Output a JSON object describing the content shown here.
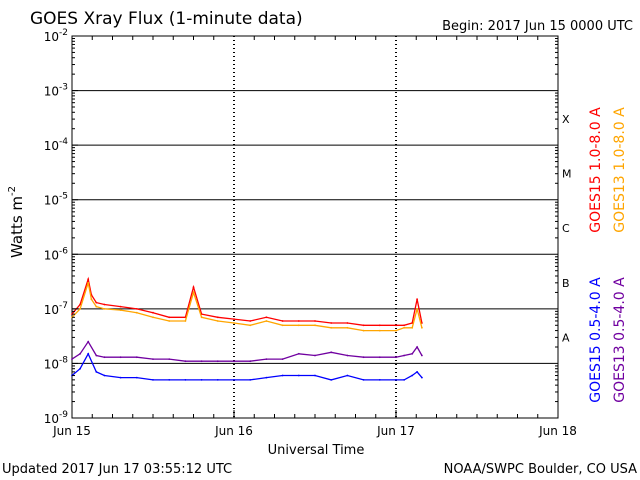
{
  "chart_data": {
    "type": "line",
    "title": "GOES Xray Flux (1-minute data)",
    "begin_label": "Begin:  2017 Jun 15 0000 UTC",
    "xlabel": "Universal Time",
    "ylabel": "Watts m",
    "ylabel_exp": "-2",
    "y_scale": "log",
    "ylim": [
      1e-09,
      0.01
    ],
    "y_ticks": [
      {
        "base": "10",
        "exp": "-2",
        "value": 0.01
      },
      {
        "base": "10",
        "exp": "-3",
        "value": 0.001
      },
      {
        "base": "10",
        "exp": "-4",
        "value": 0.0001
      },
      {
        "base": "10",
        "exp": "-5",
        "value": 1e-05
      },
      {
        "base": "10",
        "exp": "-6",
        "value": 1e-06
      },
      {
        "base": "10",
        "exp": "-7",
        "value": 1e-07
      },
      {
        "base": "10",
        "exp": "-8",
        "value": 1e-08
      },
      {
        "base": "10",
        "exp": "-9",
        "value": 1e-09
      }
    ],
    "x_ticks": [
      "Jun 15",
      "Jun 16",
      "Jun 17",
      "Jun 18"
    ],
    "xlim_days": [
      0,
      3
    ],
    "day_labels_dates": [
      "2017-06-15",
      "2017-06-16",
      "2017-06-17",
      "2017-06-18"
    ],
    "grid_horizontal": true,
    "flare_classes": [
      {
        "label": "X",
        "value": 0.0003
      },
      {
        "label": "M",
        "value": 3e-05
      },
      {
        "label": "C",
        "value": 3e-06
      },
      {
        "label": "B",
        "value": 3e-07
      },
      {
        "label": "A",
        "value": 3e-08
      }
    ],
    "x_units": "days since 2017-06-15 00:00 UTC",
    "series": [
      {
        "name": "GOES15 1.0-8.0 A",
        "color": "#ff0000",
        "x": [
          0.0,
          0.05,
          0.1,
          0.12,
          0.15,
          0.2,
          0.3,
          0.4,
          0.5,
          0.6,
          0.7,
          0.75,
          0.8,
          0.9,
          1.0,
          1.1,
          1.2,
          1.3,
          1.4,
          1.5,
          1.6,
          1.7,
          1.8,
          1.9,
          2.0,
          2.05,
          2.1,
          2.13,
          2.16
        ],
        "y": [
          8e-08,
          1.2e-07,
          3.5e-07,
          1.8e-07,
          1.3e-07,
          1.2e-07,
          1.1e-07,
          1e-07,
          8.5e-08,
          7e-08,
          7e-08,
          2.5e-07,
          8e-08,
          7e-08,
          6.5e-08,
          6e-08,
          7e-08,
          6e-08,
          6e-08,
          6e-08,
          5.5e-08,
          5.5e-08,
          5e-08,
          5e-08,
          5e-08,
          5e-08,
          5.5e-08,
          1.5e-07,
          5.5e-08
        ]
      },
      {
        "name": "GOES13 1.0-8.0 A",
        "color": "#ffa500",
        "x": [
          0.0,
          0.05,
          0.1,
          0.12,
          0.15,
          0.2,
          0.3,
          0.4,
          0.5,
          0.6,
          0.7,
          0.75,
          0.8,
          0.9,
          1.0,
          1.1,
          1.2,
          1.3,
          1.4,
          1.5,
          1.6,
          1.7,
          1.8,
          1.9,
          2.0,
          2.05,
          2.1,
          2.13,
          2.16
        ],
        "y": [
          7e-08,
          1e-07,
          3e-07,
          1.5e-07,
          1.1e-07,
          1e-07,
          9.5e-08,
          8.5e-08,
          7e-08,
          6e-08,
          6e-08,
          2e-07,
          7e-08,
          6e-08,
          5.5e-08,
          5e-08,
          6e-08,
          5e-08,
          5e-08,
          5e-08,
          4.5e-08,
          4.5e-08,
          4e-08,
          4e-08,
          4e-08,
          4.5e-08,
          4.5e-08,
          1e-07,
          4.5e-08
        ]
      },
      {
        "name": "GOES15 0.5-4.0 A",
        "color": "#0000ff",
        "x": [
          0.0,
          0.05,
          0.1,
          0.15,
          0.2,
          0.3,
          0.4,
          0.5,
          0.6,
          0.7,
          0.8,
          0.9,
          1.0,
          1.1,
          1.2,
          1.3,
          1.4,
          1.5,
          1.6,
          1.7,
          1.8,
          1.9,
          2.0,
          2.05,
          2.1,
          2.13,
          2.16
        ],
        "y": [
          6e-09,
          8e-09,
          1.5e-08,
          7e-09,
          6e-09,
          5.5e-09,
          5.5e-09,
          5e-09,
          5e-09,
          5e-09,
          5e-09,
          5e-09,
          5e-09,
          5e-09,
          5.5e-09,
          6e-09,
          6e-09,
          6e-09,
          5e-09,
          6e-09,
          5e-09,
          5e-09,
          5e-09,
          5e-09,
          6e-09,
          7e-09,
          5.5e-09
        ]
      },
      {
        "name": "GOES13 0.5-4.0 A",
        "color": "#7000a0",
        "x": [
          0.0,
          0.05,
          0.1,
          0.15,
          0.2,
          0.3,
          0.4,
          0.5,
          0.6,
          0.7,
          0.8,
          0.9,
          1.0,
          1.1,
          1.2,
          1.3,
          1.4,
          1.5,
          1.6,
          1.7,
          1.8,
          1.9,
          2.0,
          2.05,
          2.1,
          2.13,
          2.16
        ],
        "y": [
          1.2e-08,
          1.5e-08,
          2.5e-08,
          1.4e-08,
          1.3e-08,
          1.3e-08,
          1.3e-08,
          1.2e-08,
          1.2e-08,
          1.1e-08,
          1.1e-08,
          1.1e-08,
          1.1e-08,
          1.1e-08,
          1.2e-08,
          1.2e-08,
          1.5e-08,
          1.4e-08,
          1.6e-08,
          1.4e-08,
          1.3e-08,
          1.3e-08,
          1.3e-08,
          1.4e-08,
          1.5e-08,
          2e-08,
          1.4e-08
        ]
      }
    ]
  },
  "footer": {
    "updated": "Updated 2017 Jun 17 03:55:12 UTC",
    "credit": "NOAA/SWPC Boulder, CO USA"
  }
}
